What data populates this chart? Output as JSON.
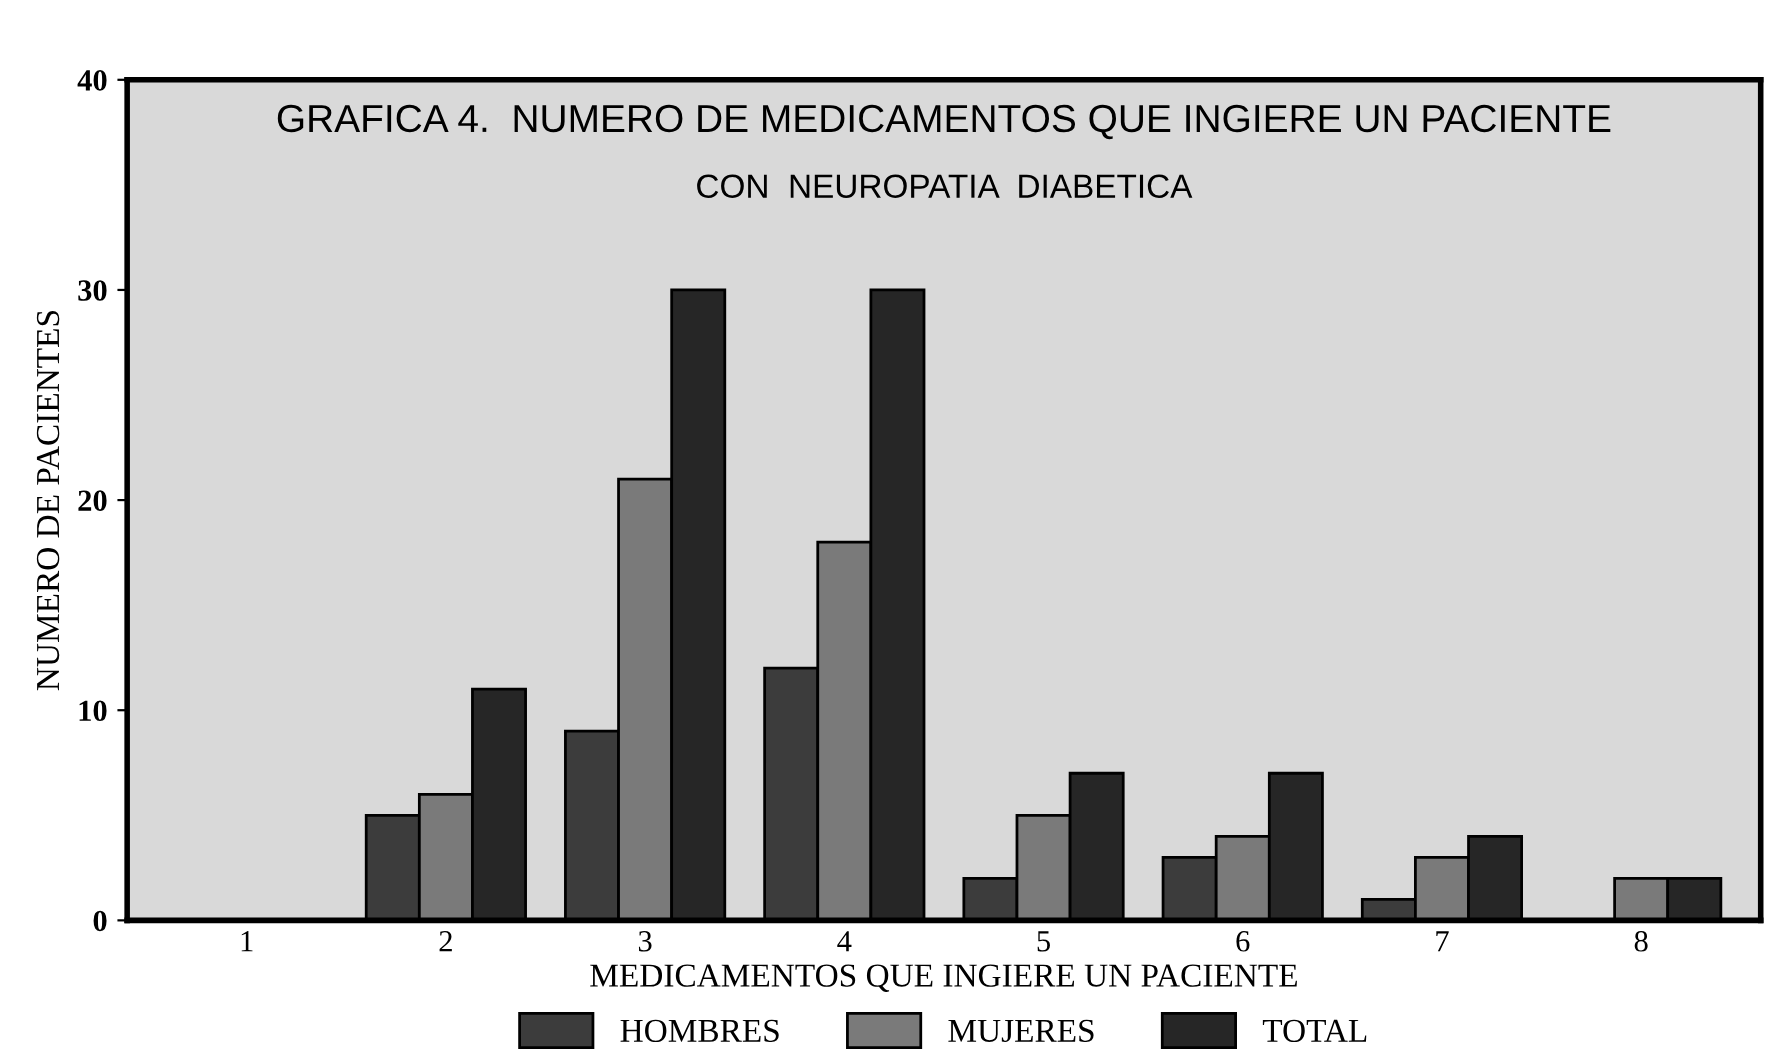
{
  "chart_data": {
    "type": "bar",
    "title": "GRAFICA 4.  NUMERO DE MEDICAMENTOS QUE INGIERE UN PACIENTE",
    "subtitle": "CON  NEUROPATIA  DIABETICA",
    "xlabel": "MEDICAMENTOS QUE INGIERE UN PACIENTE",
    "ylabel": "NUMERO DE PACIENTES",
    "categories": [
      "1",
      "2",
      "3",
      "4",
      "5",
      "6",
      "7",
      "8"
    ],
    "series": [
      {
        "name": "HOMBRES",
        "color": "#3c3c3c",
        "values": [
          null,
          5,
          9,
          12,
          2,
          3,
          1,
          null
        ]
      },
      {
        "name": "MUJERES",
        "color": "#7a7a7a",
        "values": [
          null,
          6,
          21,
          18,
          5,
          4,
          3,
          2
        ]
      },
      {
        "name": "TOTAL",
        "color": "#262626",
        "values": [
          null,
          11,
          30,
          30,
          7,
          7,
          4,
          2
        ]
      }
    ],
    "ylim": [
      0,
      40
    ],
    "yticks": [
      0,
      10,
      20,
      30,
      40
    ],
    "grid": false,
    "legend": "bottom"
  }
}
